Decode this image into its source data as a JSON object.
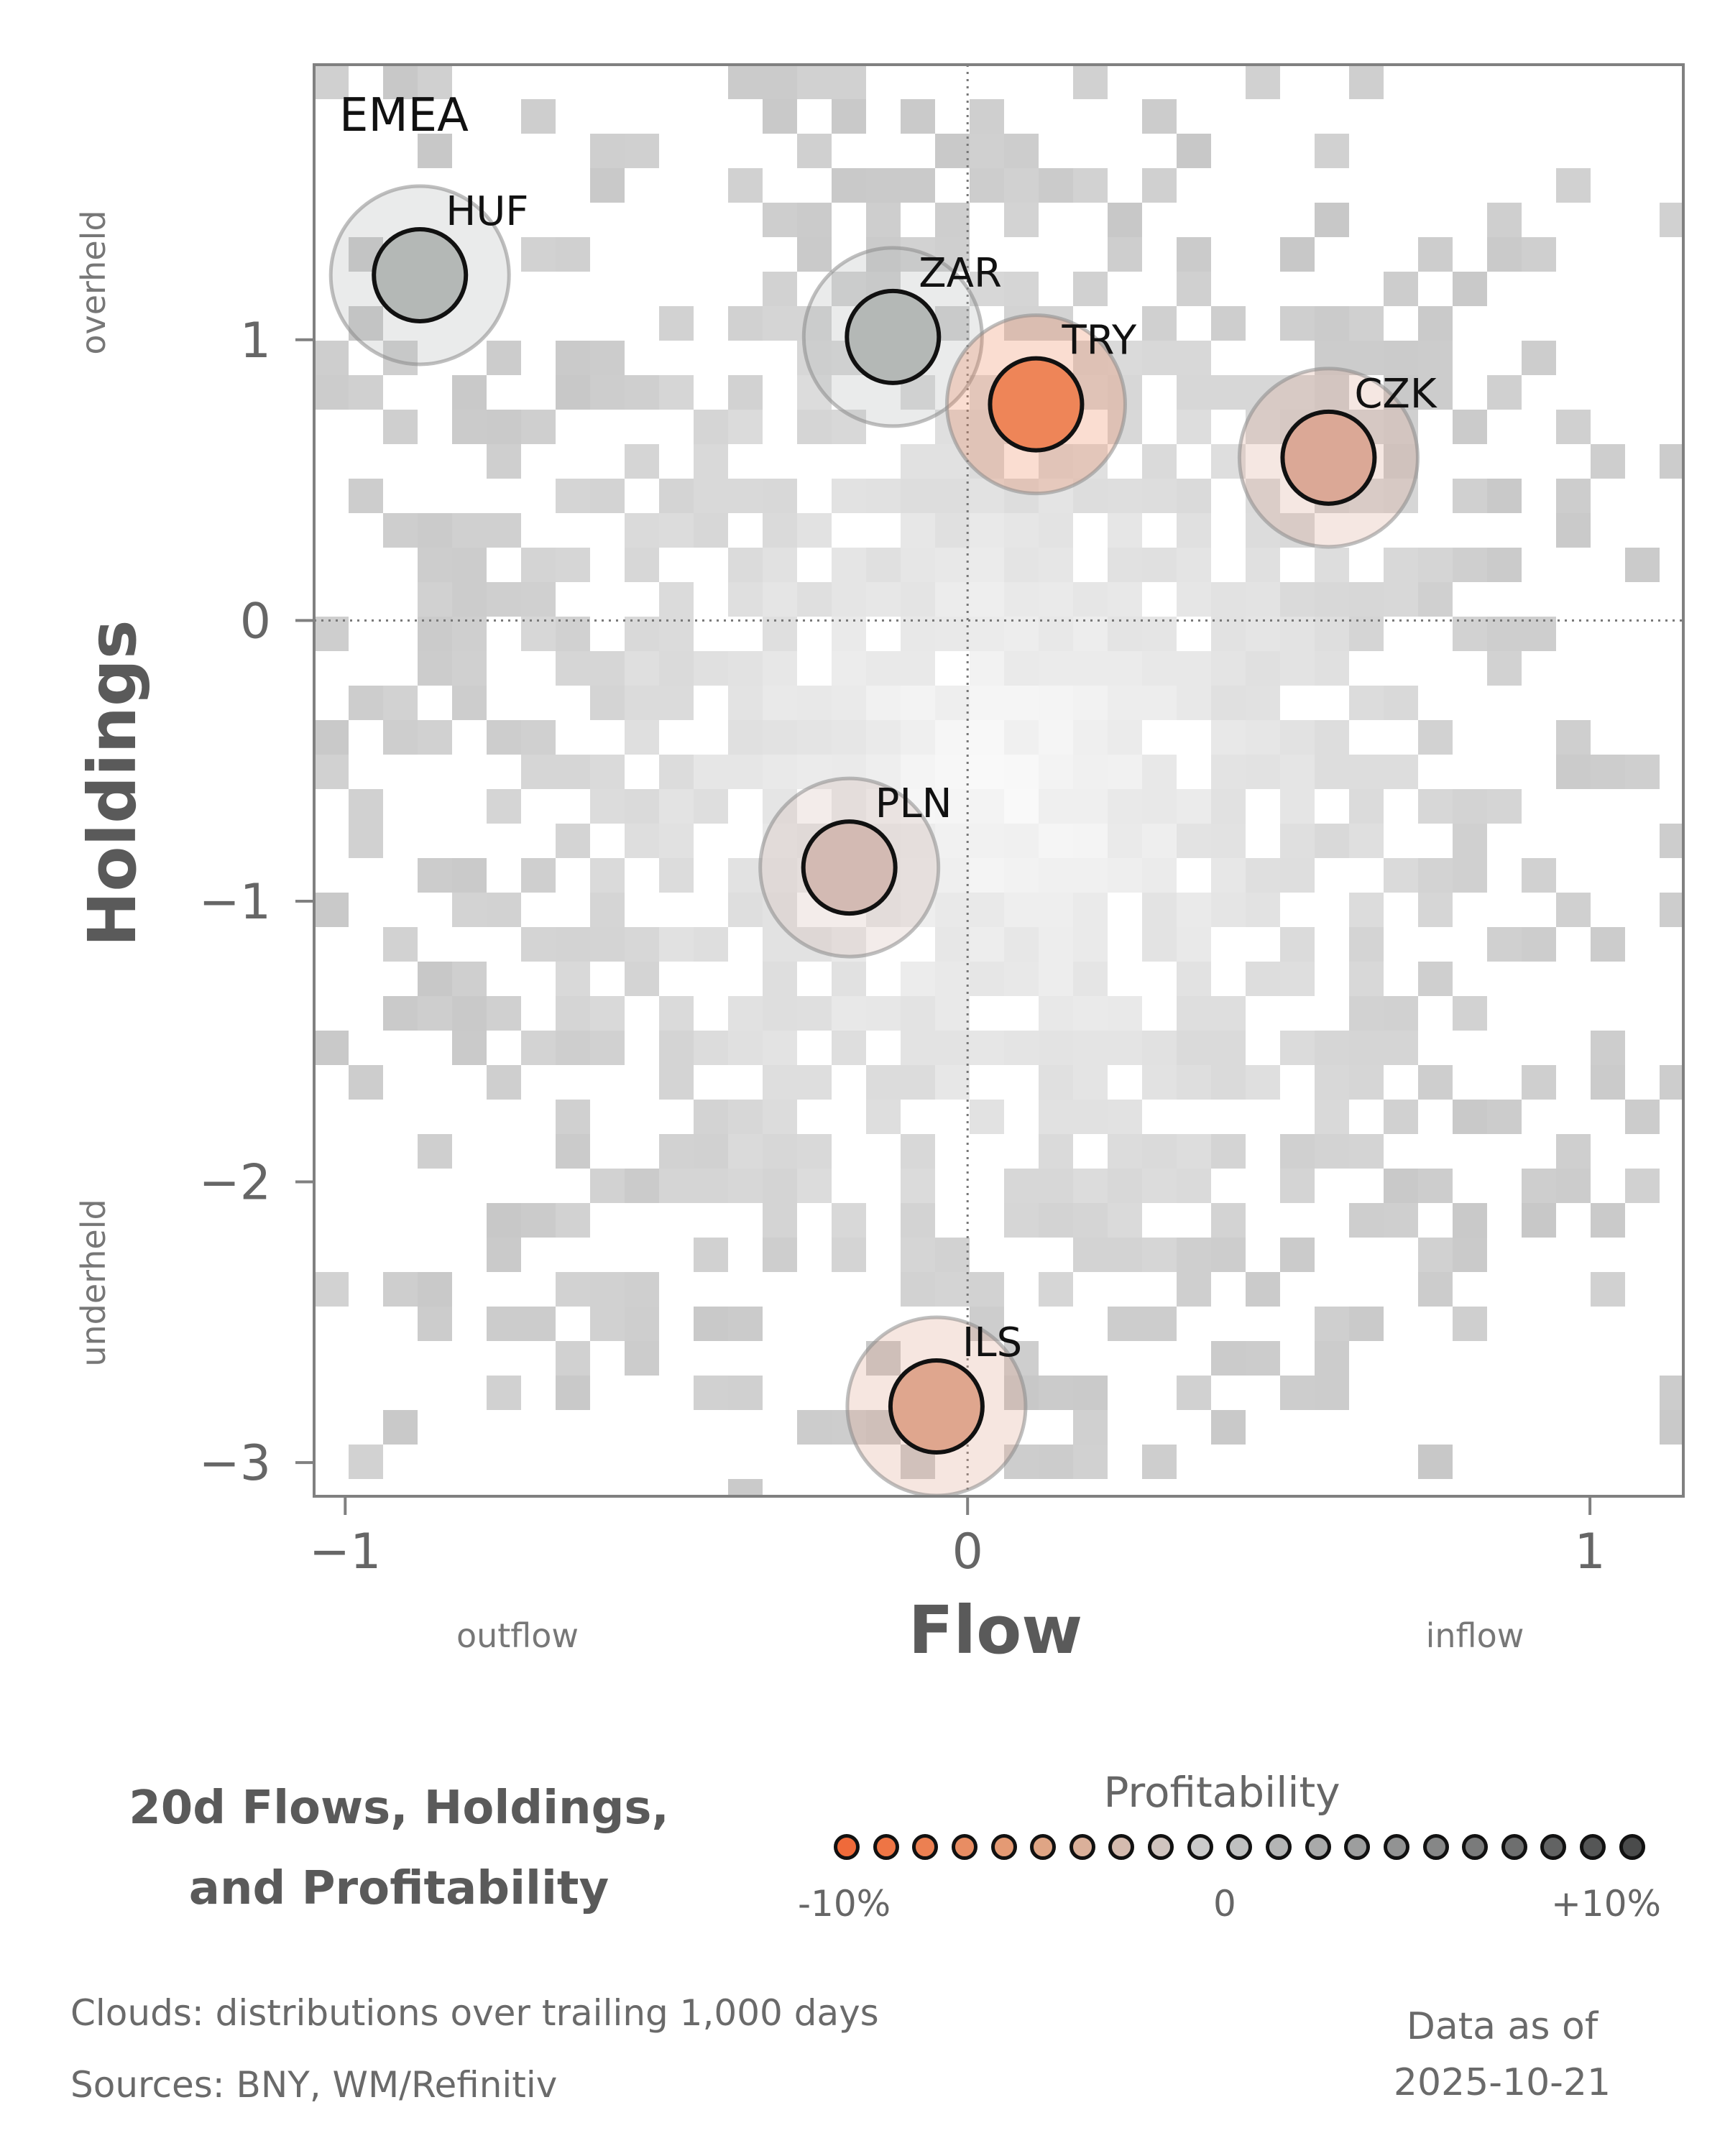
{
  "chart_data": {
    "type": "scatter",
    "panel_label": "EMEA",
    "xlabel": "Flow",
    "ylabel": "Holdings",
    "xlim": [
      -1.05,
      1.15
    ],
    "ylim": [
      -3.12,
      1.98
    ],
    "x_ticks": [
      -1,
      0,
      1
    ],
    "x_tick_labels": [
      "−1",
      "0",
      "1"
    ],
    "y_ticks": [
      1,
      0,
      -1,
      -2,
      -3
    ],
    "y_tick_labels": [
      "1",
      "0",
      "−1",
      "−2",
      "−3"
    ],
    "x_side_labels": {
      "low": "outflow",
      "high": "inflow"
    },
    "y_side_labels": {
      "low": "underheld",
      "high": "overheld"
    },
    "reference_lines": {
      "x": 0,
      "y": 0
    },
    "background": "heatmap cloud of trailing distributions (gray)",
    "points": [
      {
        "label": "HUF",
        "flow": -0.88,
        "holdings": 1.23,
        "profitability": 2,
        "color": "#b4b8b6"
      },
      {
        "label": "ZAR",
        "flow": -0.12,
        "holdings": 1.01,
        "profitability": 2,
        "color": "#b4b8b6"
      },
      {
        "label": "TRY",
        "flow": 0.11,
        "holdings": 0.77,
        "profitability": -9,
        "color": "#ee8558"
      },
      {
        "label": "CZK",
        "flow": 0.58,
        "holdings": 0.58,
        "profitability": -4,
        "color": "#dba896"
      },
      {
        "label": "PLN",
        "flow": -0.19,
        "holdings": -0.88,
        "profitability": -2,
        "color": "#d3bab3"
      },
      {
        "label": "ILS",
        "flow": -0.05,
        "holdings": -2.8,
        "profitability": -5,
        "color": "#dfa68e"
      }
    ]
  },
  "title_lines": [
    "20d Flows, Holdings,",
    "and Profitability"
  ],
  "legend": {
    "title": "Profitability",
    "min_label": "-10%",
    "mid_label": "0",
    "max_label": "+10%",
    "colors": [
      "#ef6a3a",
      "#ee7545",
      "#ec8052",
      "#e88d63",
      "#e49a74",
      "#df a585",
      "#dab09a",
      "#d5bbaf",
      "#d0c4bf",
      "#cbcbcb",
      "#bfc0c0",
      "#b4b5b5",
      "#a9aaaa",
      "#9d9e9e",
      "#929393",
      "#868787",
      "#7a7b7b",
      "#6e6f6f",
      "#626363",
      "#555656",
      "#4a4b4b"
    ]
  },
  "footnotes": {
    "clouds": "Clouds:  distributions over trailing 1,000 days",
    "sources": "Sources:  BNY, WM/Refinitiv"
  },
  "as_of": {
    "label": "Data as of",
    "date": "2025-10-21"
  }
}
